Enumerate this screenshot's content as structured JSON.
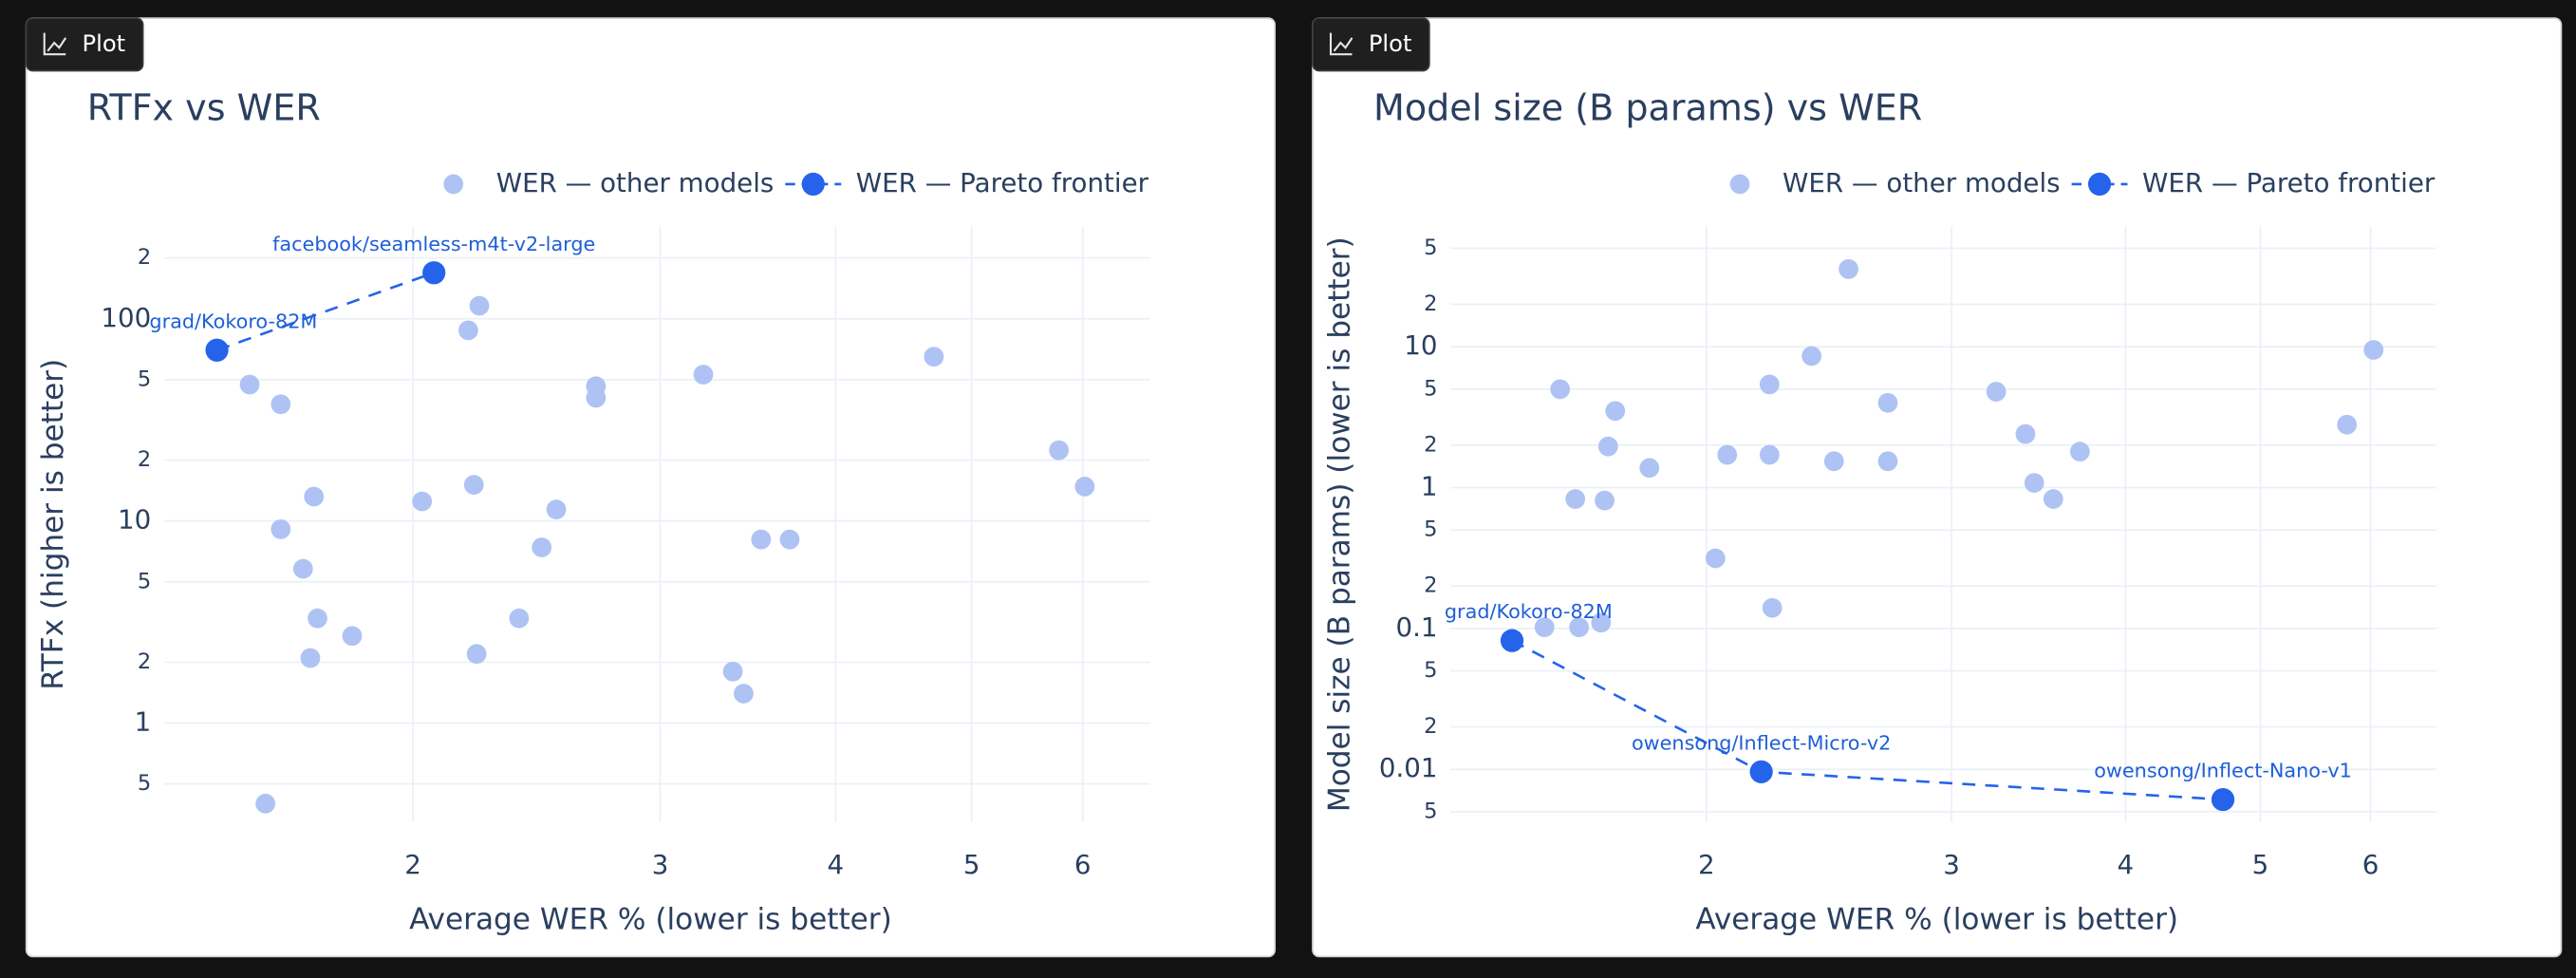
{
  "tabs": [
    "Plot",
    "Plot"
  ],
  "chart_data": [
    {
      "type": "scatter",
      "title": "RTFx vs WER",
      "x_label": "Average WER % (lower is better)",
      "y_label": "RTFx (higher is better)",
      "x_log": true,
      "y_log": true,
      "grid": true,
      "legend": "top",
      "xlim": [
        1.33,
        6.7
      ],
      "ylim": [
        0.325,
        285
      ],
      "xticks": [
        2,
        3,
        4,
        5,
        6
      ],
      "yticks": [
        {
          "value": 0.5,
          "label": "5"
        },
        1,
        2,
        5,
        10,
        {
          "value": 20,
          "label": "2"
        },
        {
          "value": 50,
          "label": "5"
        },
        100,
        {
          "value": 200,
          "label": "2"
        }
      ],
      "series": [
        {
          "name": "WER — other models",
          "color": "#aec3f4",
          "x": [
            1.53,
            1.61,
            2.23,
            2.19,
            2.7,
            2.7,
            3.22,
            4.7,
            5.77,
            6.02,
            1.7,
            1.61,
            1.67,
            1.71,
            1.81,
            1.69,
            2.03,
            2.21,
            2.53,
            2.47,
            2.38,
            2.22,
            3.54,
            3.71,
            3.38,
            3.44,
            1.57
          ],
          "values": [
            47.3,
            37.8,
            116,
            87.7,
            46.4,
            40.7,
            53,
            65,
            22.4,
            14.8,
            13.2,
            9.1,
            5.8,
            3.3,
            2.7,
            2.1,
            12.5,
            15.1,
            11.4,
            7.4,
            3.3,
            2.2,
            8.1,
            8.1,
            1.8,
            1.4,
            0.4
          ]
        },
        {
          "name": "WER — Pareto frontier",
          "color": "#2563eb",
          "frontier": true,
          "x": [
            1.45,
            2.07
          ],
          "values": [
            70,
            169
          ],
          "labels": [
            "grad/Kokoro-82M",
            "facebook/seamless-m4t-v2-large"
          ]
        }
      ]
    },
    {
      "type": "scatter",
      "title": "Model size (B params) vs WER",
      "x_label": "Average WER % (lower is better)",
      "y_label": "Model size (B params) (lower is better)",
      "x_log": true,
      "y_log": true,
      "grid": true,
      "legend": "top",
      "xlim": [
        1.31,
        6.69
      ],
      "ylim": [
        0.00424,
        71
      ],
      "xticks": [
        2,
        3,
        4,
        5,
        6
      ],
      "yticks": [
        {
          "value": 0.005,
          "label": "5"
        },
        0.01,
        {
          "value": 0.02,
          "label": "2"
        },
        {
          "value": 0.05,
          "label": "5"
        },
        0.1,
        {
          "value": 0.2,
          "label": "2"
        },
        {
          "value": 0.5,
          "label": "5"
        },
        1,
        2,
        5,
        10,
        {
          "value": 20,
          "label": "2"
        },
        {
          "value": 50,
          "label": "5"
        }
      ],
      "series": [
        {
          "name": "WER — other models",
          "color": "#aec3f4",
          "x": [
            2.53,
            6.03,
            2.38,
            1.57,
            2.22,
            1.72,
            2.7,
            3.23,
            3.39,
            3.71,
            5.77,
            1.7,
            2.07,
            2.22,
            2.47,
            2.7,
            1.82,
            3.44,
            3.55,
            1.61,
            1.69,
            2.03,
            2.23,
            1.53,
            1.62,
            1.68
          ],
          "values": [
            35.6,
            9.5,
            8.6,
            5.0,
            5.4,
            3.5,
            4.0,
            4.8,
            2.4,
            1.8,
            2.8,
            1.96,
            1.71,
            1.71,
            1.54,
            1.54,
            1.38,
            1.08,
            0.83,
            0.83,
            0.81,
            0.315,
            0.14,
            0.102,
            0.102,
            0.11
          ]
        },
        {
          "name": "WER — Pareto frontier",
          "color": "#2563eb",
          "frontier": true,
          "x": [
            1.45,
            2.19,
            4.7
          ],
          "values": [
            0.082,
            0.0096,
            0.0061
          ],
          "labels": [
            "grad/Kokoro-82M",
            "owensong/Inflect-Micro-v2",
            "owensong/Inflect-Nano-v1"
          ]
        }
      ]
    }
  ]
}
